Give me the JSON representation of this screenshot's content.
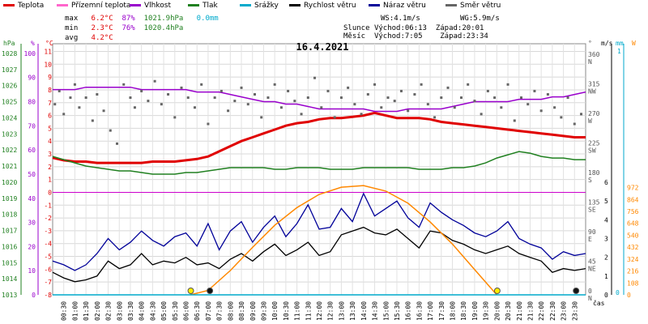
{
  "legend": [
    {
      "label": "Teplota",
      "color": "#e00000"
    },
    {
      "label": "Přízemní teplota",
      "color": "#ff66cc"
    },
    {
      "label": "Vlhkost",
      "color": "#9900cc"
    },
    {
      "label": "Tlak",
      "color": "#208020"
    },
    {
      "label": "Srážky",
      "color": "#00aacc"
    },
    {
      "label": "Rychlost větru",
      "color": "#000000"
    },
    {
      "label": "Náraz větru",
      "color": "#000099"
    },
    {
      "label": "Směr větru",
      "color": "#666666"
    }
  ],
  "stats": {
    "labels": {
      "max": "max",
      "min": "min",
      "avg": "avg"
    },
    "max": {
      "temp": "6.2°C",
      "hum": "87%",
      "press": "1021.9hPa",
      "rain": "0.0mm"
    },
    "min": {
      "temp": "2.3°C",
      "hum": "76%",
      "press": "1020.4hPa"
    },
    "avg": {
      "temp": "4.2°C"
    }
  },
  "wind_info": {
    "ws": "WS:4.1m/s",
    "wg": "WG:5.9m/s"
  },
  "sun": {
    "label": "Slunce",
    "rise": "Východ:06:13",
    "set": "Západ:20:01"
  },
  "moon": {
    "label": "Měsíc",
    "rise": "Východ:7:05",
    "set": "Západ:23:34"
  },
  "chart_data": {
    "type": "line",
    "title": "16.4.2021",
    "xlabel": "čas",
    "x_ticks": [
      "00:30",
      "01:00",
      "01:30",
      "02:00",
      "02:30",
      "03:00",
      "03:30",
      "04:00",
      "04:30",
      "05:00",
      "05:30",
      "06:00",
      "06:30",
      "07:00",
      "07:30",
      "08:00",
      "08:30",
      "09:00",
      "09:30",
      "10:00",
      "10:30",
      "11:00",
      "11:30",
      "12:00",
      "12:30",
      "13:00",
      "13:30",
      "14:00",
      "14:30",
      "15:00",
      "15:30",
      "16:00",
      "16:30",
      "17:00",
      "17:30",
      "18:00",
      "18:30",
      "19:00",
      "19:30",
      "20:00",
      "20:30",
      "21:00",
      "21:30",
      "22:00",
      "22:30",
      "23:00",
      "23:30"
    ],
    "axes": {
      "pressure": {
        "unit": "hPa",
        "ticks": [
          "1013",
          "1014",
          "1015",
          "1016",
          "1017",
          "1018",
          "1019",
          "1020",
          "1021",
          "1022",
          "1023",
          "1024",
          "1025",
          "1026",
          "1027",
          "1028"
        ],
        "range": [
          1013,
          1028.6
        ],
        "color": "#208020"
      },
      "humidity": {
        "unit": "%",
        "ticks": [
          "0",
          "10",
          "20",
          "30",
          "40",
          "50",
          "60",
          "70",
          "80",
          "90",
          "100"
        ],
        "range": [
          0,
          104
        ],
        "color": "#9900cc"
      },
      "temperature": {
        "unit": "°C",
        "ticks": [
          "-8",
          "-7",
          "-6",
          "-5",
          "-4",
          "-3",
          "-2",
          "-1",
          "0",
          "1",
          "2",
          "3",
          "4",
          "5",
          "6",
          "7",
          "8",
          "9",
          "10",
          "11"
        ],
        "range": [
          -8,
          11.6
        ],
        "color": "#e00000"
      },
      "wind_dir": {
        "unit": "°",
        "ticks": [
          {
            "v": "0",
            "d": "N"
          },
          {
            "v": "45",
            "d": "NE"
          },
          {
            "v": "90",
            "d": "E"
          },
          {
            "v": "135",
            "d": "SE"
          },
          {
            "v": "180",
            "d": "S"
          },
          {
            "v": "225",
            "d": "SW"
          },
          {
            "v": "270",
            "d": "W"
          },
          {
            "v": "315",
            "d": "NW"
          },
          {
            "v": "360",
            "d": "N"
          }
        ],
        "range": [
          0,
          382
        ]
      },
      "wind_speed": {
        "unit": "m/s",
        "ticks": [
          "0",
          "1",
          "2",
          "3",
          "4",
          "5",
          "6"
        ],
        "range": [
          0,
          6
        ],
        "color": "#000000"
      },
      "rain": {
        "unit": "mm",
        "ticks": [
          "0",
          "1"
        ],
        "range": [
          0,
          1
        ],
        "color": "#00aacc"
      },
      "solar": {
        "unit": "W",
        "ticks": [
          "0",
          "108",
          "216",
          "324",
          "432",
          "540",
          "648",
          "756",
          "864",
          "972"
        ],
        "range": [
          0,
          1020
        ],
        "color": "#ff8800"
      }
    },
    "series": [
      {
        "name": "Teplota",
        "axis": "temperature",
        "color": "#e00000",
        "x": [
          0,
          0.5,
          1,
          1.5,
          2,
          2.5,
          3,
          3.5,
          4,
          4.5,
          5,
          5.5,
          6,
          6.5,
          7,
          7.5,
          8,
          8.5,
          9,
          9.5,
          10,
          10.5,
          11,
          11.5,
          12,
          12.5,
          13,
          13.5,
          14,
          14.5,
          15,
          15.5,
          16,
          16.5,
          17,
          17.5,
          18,
          18.5,
          19,
          19.5,
          20,
          20.5,
          21,
          21.5,
          22,
          22.5,
          23,
          23.5,
          24
        ],
        "y": [
          2.7,
          2.5,
          2.4,
          2.4,
          2.3,
          2.3,
          2.3,
          2.3,
          2.3,
          2.4,
          2.4,
          2.4,
          2.5,
          2.6,
          2.8,
          3.2,
          3.6,
          4.0,
          4.3,
          4.6,
          4.9,
          5.2,
          5.4,
          5.5,
          5.7,
          5.8,
          5.8,
          5.9,
          6.0,
          6.2,
          6.0,
          5.8,
          5.8,
          5.8,
          5.7,
          5.5,
          5.4,
          5.3,
          5.2,
          5.1,
          5.0,
          4.9,
          4.8,
          4.7,
          4.6,
          4.5,
          4.4,
          4.3,
          4.3
        ]
      },
      {
        "name": "Vlhkost",
        "axis": "humidity",
        "color": "#9900cc",
        "x": [
          0,
          0.5,
          1,
          1.5,
          2,
          2.5,
          3,
          3.5,
          4,
          4.5,
          5,
          5.5,
          6,
          6.5,
          7,
          7.5,
          8,
          8.5,
          9,
          9.5,
          10,
          10.5,
          11,
          11.5,
          12,
          12.5,
          13,
          13.5,
          14,
          14.5,
          15,
          15.5,
          16,
          16.5,
          17,
          17.5,
          18,
          18.5,
          19,
          19.5,
          20,
          20.5,
          21,
          21.5,
          22,
          22.5,
          23,
          23.5,
          24
        ],
        "y": [
          85,
          85,
          85,
          86,
          86,
          86,
          86,
          86,
          85,
          85,
          85,
          85,
          85,
          84,
          84,
          84,
          83,
          82,
          81,
          80,
          80,
          79,
          79,
          78,
          77,
          77,
          77,
          77,
          77,
          76,
          76,
          76,
          77,
          77,
          77,
          77,
          78,
          79,
          80,
          80,
          80,
          80,
          81,
          81,
          81,
          82,
          82,
          83,
          84
        ]
      },
      {
        "name": "Tlak",
        "axis": "pressure",
        "color": "#208020",
        "x": [
          0,
          0.5,
          1,
          1.5,
          2,
          2.5,
          3,
          3.5,
          4,
          4.5,
          5,
          5.5,
          6,
          6.5,
          7,
          7.5,
          8,
          8.5,
          9,
          9.5,
          10,
          10.5,
          11,
          11.5,
          12,
          12.5,
          13,
          13.5,
          14,
          14.5,
          15,
          15.5,
          16,
          16.5,
          17,
          17.5,
          18,
          18.5,
          19,
          19.5,
          20,
          20.5,
          21,
          21.5,
          22,
          22.5,
          23,
          23.5,
          24
        ],
        "y": [
          1021.6,
          1021.4,
          1021.2,
          1021.0,
          1020.9,
          1020.8,
          1020.7,
          1020.7,
          1020.6,
          1020.5,
          1020.5,
          1020.5,
          1020.6,
          1020.6,
          1020.7,
          1020.8,
          1020.9,
          1020.9,
          1020.9,
          1020.9,
          1020.8,
          1020.8,
          1020.9,
          1020.9,
          1020.9,
          1020.8,
          1020.8,
          1020.8,
          1020.9,
          1020.9,
          1020.9,
          1020.9,
          1020.9,
          1020.8,
          1020.8,
          1020.8,
          1020.9,
          1020.9,
          1021.0,
          1021.2,
          1021.5,
          1021.7,
          1021.9,
          1021.8,
          1021.6,
          1021.5,
          1021.5,
          1021.4,
          1021.4
        ]
      },
      {
        "name": "Rychlost větru",
        "axis": "wind_speed",
        "color": "#000000",
        "x": [
          0,
          0.5,
          1,
          1.5,
          2,
          2.5,
          3,
          3.5,
          4,
          4.5,
          5,
          5.5,
          6,
          6.5,
          7,
          7.5,
          8,
          8.5,
          9,
          9.5,
          10,
          10.5,
          11,
          11.5,
          12,
          12.5,
          13,
          13.5,
          14,
          14.5,
          15,
          15.5,
          16,
          16.5,
          17,
          17.5,
          18,
          18.5,
          19,
          19.5,
          20,
          20.5,
          21,
          21.5,
          22,
          22.5,
          23,
          23.5,
          24
        ],
        "y": [
          1.2,
          0.9,
          0.7,
          0.8,
          1.0,
          1.8,
          1.4,
          1.6,
          2.2,
          1.6,
          1.8,
          1.7,
          2.0,
          1.6,
          1.7,
          1.4,
          1.9,
          2.2,
          1.8,
          2.3,
          2.7,
          2.1,
          2.4,
          2.8,
          2.1,
          2.3,
          3.2,
          3.4,
          3.6,
          3.3,
          3.2,
          3.5,
          3.0,
          2.5,
          3.4,
          3.3,
          2.9,
          2.7,
          2.4,
          2.2,
          2.4,
          2.6,
          2.2,
          2.0,
          1.8,
          1.2,
          1.4,
          1.3,
          1.4
        ]
      },
      {
        "name": "Náraz větru",
        "axis": "wind_speed",
        "color": "#000099",
        "x": [
          0,
          0.5,
          1,
          1.5,
          2,
          2.5,
          3,
          3.5,
          4,
          4.5,
          5,
          5.5,
          6,
          6.5,
          7,
          7.5,
          8,
          8.5,
          9,
          9.5,
          10,
          10.5,
          11,
          11.5,
          12,
          12.5,
          13,
          13.5,
          14,
          14.5,
          15,
          15.5,
          16,
          16.5,
          17,
          17.5,
          18,
          18.5,
          19,
          19.5,
          20,
          20.5,
          21,
          21.5,
          22,
          22.5,
          23,
          23.5,
          24
        ],
        "y": [
          1.8,
          1.6,
          1.3,
          1.6,
          2.2,
          3.0,
          2.4,
          2.8,
          3.4,
          2.9,
          2.6,
          3.1,
          3.3,
          2.6,
          3.8,
          2.4,
          3.4,
          3.9,
          2.8,
          3.6,
          4.2,
          3.1,
          3.8,
          4.8,
          3.5,
          3.6,
          4.6,
          3.9,
          5.4,
          4.2,
          4.6,
          5.0,
          4.1,
          3.6,
          4.9,
          4.4,
          4.0,
          3.7,
          3.3,
          3.1,
          3.4,
          3.9,
          3.0,
          2.7,
          2.5,
          1.9,
          2.3,
          2.1,
          2.2
        ]
      },
      {
        "name": "Směr větru",
        "axis": "wind_dir",
        "color": "#666666",
        "kind": "scatter",
        "x": [
          0.1,
          0.3,
          0.5,
          0.8,
          1.0,
          1.2,
          1.5,
          1.8,
          2.0,
          2.3,
          2.6,
          2.9,
          3.2,
          3.5,
          3.7,
          4.0,
          4.3,
          4.6,
          4.9,
          5.2,
          5.5,
          5.8,
          6.1,
          6.4,
          6.7,
          7.0,
          7.3,
          7.6,
          7.9,
          8.2,
          8.5,
          8.8,
          9.1,
          9.4,
          9.7,
          10.0,
          10.3,
          10.6,
          10.9,
          11.2,
          11.5,
          11.8,
          12.1,
          12.4,
          12.7,
          13.0,
          13.3,
          13.6,
          13.9,
          14.2,
          14.5,
          14.8,
          15.1,
          15.4,
          15.7,
          16.0,
          16.3,
          16.6,
          16.9,
          17.2,
          17.5,
          17.8,
          18.1,
          18.4,
          18.7,
          19.0,
          19.3,
          19.6,
          19.9,
          20.2,
          20.5,
          20.8,
          21.1,
          21.4,
          21.7,
          22.0,
          22.3,
          22.6,
          22.9,
          23.2,
          23.5,
          23.8
        ],
        "y": [
          290,
          310,
          275,
          300,
          320,
          285,
          300,
          265,
          305,
          280,
          250,
          230,
          320,
          300,
          285,
          310,
          295,
          325,
          290,
          305,
          270,
          315,
          300,
          285,
          320,
          260,
          300,
          310,
          280,
          295,
          315,
          290,
          305,
          270,
          300,
          320,
          285,
          310,
          295,
          275,
          300,
          330,
          285,
          310,
          270,
          300,
          315,
          290,
          275,
          305,
          320,
          285,
          300,
          295,
          310,
          280,
          305,
          320,
          290,
          270,
          300,
          315,
          285,
          300,
          320,
          295,
          275,
          310,
          300,
          285,
          320,
          265,
          300,
          290,
          310,
          280,
          305,
          285,
          270,
          300,
          260,
          275
        ]
      },
      {
        "name": "Solar",
        "axis": "solar",
        "color": "#ff8800",
        "x": [
          6.2,
          7,
          8,
          9,
          10,
          11,
          12,
          13,
          14,
          15,
          16,
          17,
          18,
          19,
          20
        ],
        "y": [
          0,
          40,
          220,
          430,
          630,
          790,
          910,
          975,
          990,
          940,
          830,
          660,
          460,
          230,
          0
        ]
      },
      {
        "name": "Srážky",
        "axis": "rain",
        "color": "#00aacc",
        "x": [
          0,
          24
        ],
        "y": [
          0,
          0
        ]
      }
    ],
    "sun_rise_x": 6.22,
    "sun_set_x": 20.02,
    "moon_rise_x": 7.08,
    "moon_set_x": 23.57,
    "grid": true
  }
}
